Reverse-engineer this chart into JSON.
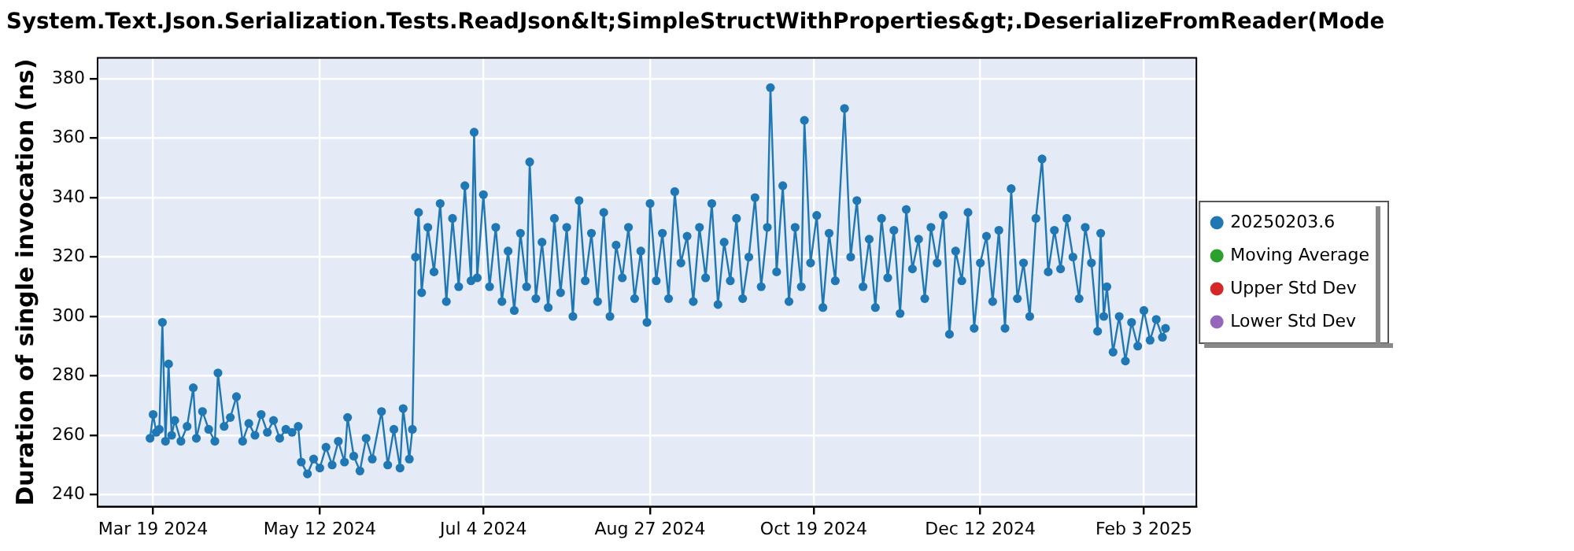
{
  "chart_data": {
    "type": "line",
    "title": "System.Text.Json.Serialization.Tests.ReadJson&lt;SimpleStructWithProperties&gt;.DeserializeFromReader(Mode",
    "ylabel": "Duration of single invocation (ns)",
    "xlim": [
      "2024-03-01",
      "2025-02-20"
    ],
    "xticks": [
      {
        "value": "2024-03-19",
        "label": "Mar 19 2024"
      },
      {
        "value": "2024-05-12",
        "label": "May 12 2024"
      },
      {
        "value": "2024-07-04",
        "label": "Jul 4 2024"
      },
      {
        "value": "2024-08-27",
        "label": "Aug 27 2024"
      },
      {
        "value": "2024-10-19",
        "label": "Oct 19 2024"
      },
      {
        "value": "2024-12-12",
        "label": "Dec 12 2024"
      },
      {
        "value": "2025-02-03",
        "label": "Feb 3 2025"
      }
    ],
    "ylim": [
      236,
      387
    ],
    "yticks": [
      240,
      260,
      280,
      300,
      320,
      340,
      360,
      380
    ],
    "grid": true,
    "legend": "right",
    "marker": "circle",
    "line_style": "solid",
    "x": [
      "2024-03-18",
      "2024-03-19",
      "2024-03-20",
      "2024-03-21",
      "2024-03-22",
      "2024-03-23",
      "2024-03-24",
      "2024-03-25",
      "2024-03-26",
      "2024-03-28",
      "2024-03-30",
      "2024-04-01",
      "2024-04-02",
      "2024-04-04",
      "2024-04-06",
      "2024-04-08",
      "2024-04-09",
      "2024-04-11",
      "2024-04-13",
      "2024-04-15",
      "2024-04-17",
      "2024-04-19",
      "2024-04-21",
      "2024-04-23",
      "2024-04-25",
      "2024-04-27",
      "2024-04-29",
      "2024-05-01",
      "2024-05-03",
      "2024-05-05",
      "2024-05-06",
      "2024-05-08",
      "2024-05-10",
      "2024-05-12",
      "2024-05-14",
      "2024-05-16",
      "2024-05-18",
      "2024-05-20",
      "2024-05-21",
      "2024-05-23",
      "2024-05-25",
      "2024-05-27",
      "2024-05-29",
      "2024-06-01",
      "2024-06-03",
      "2024-06-05",
      "2024-06-07",
      "2024-06-08",
      "2024-06-10",
      "2024-06-11",
      "2024-06-12",
      "2024-06-13",
      "2024-06-14",
      "2024-06-16",
      "2024-06-18",
      "2024-06-20",
      "2024-06-22",
      "2024-06-24",
      "2024-06-26",
      "2024-06-28",
      "2024-06-30",
      "2024-07-01",
      "2024-07-02",
      "2024-07-04",
      "2024-07-06",
      "2024-07-08",
      "2024-07-10",
      "2024-07-12",
      "2024-07-14",
      "2024-07-16",
      "2024-07-18",
      "2024-07-19",
      "2024-07-21",
      "2024-07-23",
      "2024-07-25",
      "2024-07-27",
      "2024-07-29",
      "2024-07-31",
      "2024-08-02",
      "2024-08-04",
      "2024-08-06",
      "2024-08-08",
      "2024-08-10",
      "2024-08-12",
      "2024-08-14",
      "2024-08-16",
      "2024-08-18",
      "2024-08-20",
      "2024-08-22",
      "2024-08-24",
      "2024-08-26",
      "2024-08-27",
      "2024-08-29",
      "2024-08-31",
      "2024-09-02",
      "2024-09-04",
      "2024-09-06",
      "2024-09-08",
      "2024-09-10",
      "2024-09-12",
      "2024-09-14",
      "2024-09-16",
      "2024-09-18",
      "2024-09-20",
      "2024-09-22",
      "2024-09-24",
      "2024-09-26",
      "2024-09-28",
      "2024-09-30",
      "2024-10-02",
      "2024-10-04",
      "2024-10-05",
      "2024-10-07",
      "2024-10-09",
      "2024-10-11",
      "2024-10-13",
      "2024-10-15",
      "2024-10-16",
      "2024-10-18",
      "2024-10-20",
      "2024-10-22",
      "2024-10-24",
      "2024-10-26",
      "2024-10-29",
      "2024-10-31",
      "2024-11-02",
      "2024-11-04",
      "2024-11-06",
      "2024-11-08",
      "2024-11-10",
      "2024-11-12",
      "2024-11-14",
      "2024-11-16",
      "2024-11-18",
      "2024-11-20",
      "2024-11-22",
      "2024-11-24",
      "2024-11-26",
      "2024-11-28",
      "2024-11-30",
      "2024-12-02",
      "2024-12-04",
      "2024-12-06",
      "2024-12-08",
      "2024-12-10",
      "2024-12-12",
      "2024-12-14",
      "2024-12-16",
      "2024-12-18",
      "2024-12-20",
      "2024-12-22",
      "2024-12-24",
      "2024-12-26",
      "2024-12-28",
      "2024-12-30",
      "2025-01-01",
      "2025-01-03",
      "2025-01-05",
      "2025-01-07",
      "2025-01-09",
      "2025-01-11",
      "2025-01-13",
      "2025-01-15",
      "2025-01-17",
      "2025-01-19",
      "2025-01-20",
      "2025-01-21",
      "2025-01-22",
      "2025-01-24",
      "2025-01-26",
      "2025-01-28",
      "2025-01-30",
      "2025-02-01",
      "2025-02-03",
      "2025-02-05",
      "2025-02-07",
      "2025-02-09",
      "2025-02-10"
    ],
    "series": [
      {
        "name": "20250203.6",
        "color": "#1f77b4",
        "values": [
          259,
          267,
          261,
          262,
          298,
          258,
          284,
          260,
          265,
          258,
          263,
          276,
          259,
          268,
          262,
          258,
          281,
          263,
          266,
          273,
          258,
          264,
          260,
          267,
          261,
          265,
          259,
          262,
          261,
          263,
          251,
          247,
          252,
          249,
          256,
          250,
          258,
          251,
          266,
          253,
          248,
          259,
          252,
          268,
          250,
          262,
          249,
          269,
          252,
          262,
          320,
          335,
          308,
          330,
          315,
          338,
          305,
          333,
          310,
          344,
          312,
          362,
          313,
          341,
          310,
          330,
          305,
          322,
          302,
          328,
          310,
          352,
          306,
          325,
          303,
          333,
          308,
          330,
          300,
          339,
          312,
          328,
          305,
          335,
          300,
          324,
          313,
          330,
          306,
          322,
          298,
          338,
          312,
          328,
          306,
          342,
          318,
          327,
          305,
          330,
          313,
          338,
          304,
          325,
          312,
          333,
          306,
          320,
          340,
          310,
          330,
          377,
          315,
          344,
          305,
          330,
          310,
          366,
          318,
          334,
          303,
          328,
          312,
          370,
          320,
          339,
          310,
          326,
          303,
          333,
          313,
          329,
          301,
          336,
          316,
          326,
          306,
          330,
          318,
          334,
          294,
          322,
          312,
          335,
          296,
          318,
          327,
          305,
          329,
          296,
          343,
          306,
          318,
          300,
          333,
          353,
          315,
          329,
          316,
          333,
          320,
          306,
          330,
          318,
          295,
          328,
          300,
          310,
          288,
          300,
          285,
          298,
          290,
          302,
          292,
          299,
          293,
          296
        ]
      },
      {
        "name": "Moving Average",
        "color": "#2ca02c",
        "values": [
          null,
          null,
          null,
          null,
          null,
          null,
          null,
          null,
          null,
          null,
          null,
          null,
          null,
          null,
          null,
          null,
          null,
          null,
          null,
          null,
          null,
          null,
          null,
          null,
          null,
          null,
          null,
          null,
          null,
          null,
          null,
          null,
          null,
          null,
          null,
          null,
          null,
          null,
          null,
          null,
          null,
          null,
          null,
          null,
          null,
          null,
          null,
          null,
          null,
          null,
          null,
          null,
          null,
          null,
          null,
          null,
          null,
          null,
          null,
          null,
          null,
          null,
          null,
          null,
          null,
          null,
          null,
          null,
          null,
          null,
          null,
          null,
          null,
          null,
          null,
          null,
          null,
          null,
          null,
          null,
          null,
          null,
          null,
          null,
          null,
          null,
          null,
          null,
          null,
          null,
          null,
          null,
          null,
          null,
          null,
          null,
          null,
          null,
          null,
          null,
          null,
          null,
          null,
          null,
          null,
          null,
          null,
          null,
          null,
          null,
          null,
          null,
          null,
          null,
          null,
          null,
          null,
          null,
          null,
          null,
          null,
          null,
          null,
          null,
          null,
          null,
          null,
          null,
          null,
          null,
          null,
          null,
          null,
          null,
          null,
          null,
          null,
          null,
          null,
          null,
          null,
          null,
          null,
          null,
          null,
          null,
          null,
          null,
          null,
          null,
          null,
          null,
          null,
          null,
          null,
          null,
          null,
          null,
          null,
          null,
          null,
          null,
          null,
          null,
          null,
          null,
          null,
          null,
          null,
          null,
          null,
          null,
          null,
          null,
          null,
          null,
          null,
          null
        ]
      },
      {
        "name": "Upper Std Dev",
        "color": "#d62728",
        "values": [
          null,
          null,
          null,
          null,
          null,
          null,
          null,
          null,
          null,
          null,
          null,
          null,
          null,
          null,
          null,
          null,
          null,
          null,
          null,
          null,
          null,
          null,
          null,
          null,
          null,
          null,
          null,
          null,
          null,
          null,
          null,
          null,
          null,
          null,
          null,
          null,
          null,
          null,
          null,
          null,
          null,
          null,
          null,
          null,
          null,
          null,
          null,
          null,
          null,
          null,
          null,
          null,
          null,
          null,
          null,
          null,
          null,
          null,
          null,
          null,
          null,
          null,
          null,
          null,
          null,
          null,
          null,
          null,
          null,
          null,
          null,
          null,
          null,
          null,
          null,
          null,
          null,
          null,
          null,
          null,
          null,
          null,
          null,
          null,
          null,
          null,
          null,
          null,
          null,
          null,
          null,
          null,
          null,
          null,
          null,
          null,
          null,
          null,
          null,
          null,
          null,
          null,
          null,
          null,
          null,
          null,
          null,
          null,
          null,
          null,
          null,
          null,
          null,
          null,
          null,
          null,
          null,
          null,
          null,
          null,
          null,
          null,
          null,
          null,
          null,
          null,
          null,
          null,
          null,
          null,
          null,
          null,
          null,
          null,
          null,
          null,
          null,
          null,
          null,
          null,
          null,
          null,
          null,
          null,
          null,
          null,
          null,
          null,
          null,
          null,
          null,
          null,
          null,
          null,
          null,
          null,
          null,
          null,
          null,
          null,
          null,
          null,
          null,
          null,
          null,
          null,
          null,
          null,
          null,
          null,
          null,
          null,
          null,
          null,
          null,
          null,
          null,
          null
        ]
      },
      {
        "name": "Lower Std Dev",
        "color": "#9467bd",
        "values": [
          null,
          null,
          null,
          null,
          null,
          null,
          null,
          null,
          null,
          null,
          null,
          null,
          null,
          null,
          null,
          null,
          null,
          null,
          null,
          null,
          null,
          null,
          null,
          null,
          null,
          null,
          null,
          null,
          null,
          null,
          null,
          null,
          null,
          null,
          null,
          null,
          null,
          null,
          null,
          null,
          null,
          null,
          null,
          null,
          null,
          null,
          null,
          null,
          null,
          null,
          null,
          null,
          null,
          null,
          null,
          null,
          null,
          null,
          null,
          null,
          null,
          null,
          null,
          null,
          null,
          null,
          null,
          null,
          null,
          null,
          null,
          null,
          null,
          null,
          null,
          null,
          null,
          null,
          null,
          null,
          null,
          null,
          null,
          null,
          null,
          null,
          null,
          null,
          null,
          null,
          null,
          null,
          null,
          null,
          null,
          null,
          null,
          null,
          null,
          null,
          null,
          null,
          null,
          null,
          null,
          null,
          null,
          null,
          null,
          null,
          null,
          null,
          null,
          null,
          null,
          null,
          null,
          null,
          null,
          null,
          null,
          null,
          null,
          null,
          null,
          null,
          null,
          null,
          null,
          null,
          null,
          null,
          null,
          null,
          null,
          null,
          null,
          null,
          null,
          null,
          null,
          null,
          null,
          null,
          null,
          null,
          null,
          null,
          null,
          null,
          null,
          null,
          null,
          null,
          null,
          null,
          null,
          null,
          null,
          null,
          null,
          null,
          null,
          null,
          null,
          null,
          null,
          null,
          null,
          null,
          null,
          null,
          null,
          null,
          null,
          null,
          null,
          null
        ]
      }
    ]
  }
}
